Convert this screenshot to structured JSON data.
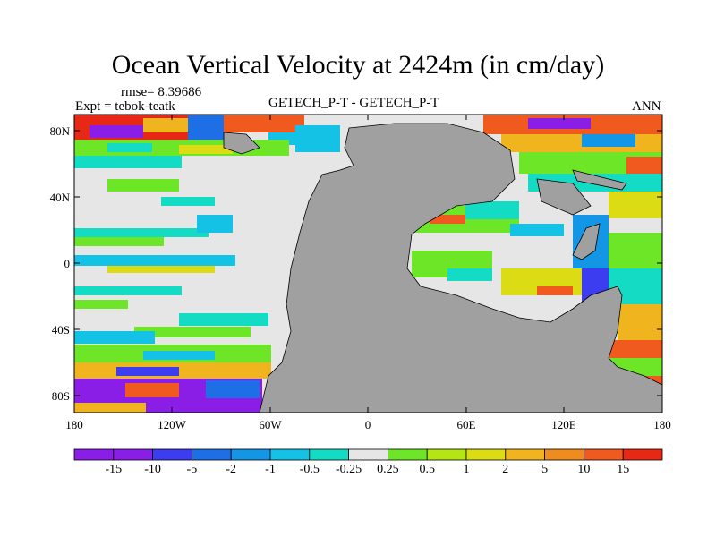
{
  "title": "Ocean Vertical Velocity at 2424m (in cm/day)",
  "stats": "rmse= 8.39686",
  "experiment": "Expt = tebok-teatk",
  "subtitle": "GETECH_P-T - GETECH_P-T",
  "season": "ANN",
  "lat_labels": [
    "80N",
    "40N",
    "0",
    "40S",
    "80S"
  ],
  "lon_labels": [
    "180",
    "120W",
    "60W",
    "0",
    "60E",
    "120E",
    "180"
  ],
  "colorbar": {
    "labels": [
      "-15",
      "-10",
      "-5",
      "-2",
      "-1",
      "-0.5",
      "-0.25",
      "0.25",
      "0.5",
      "1",
      "2",
      "5",
      "10",
      "15"
    ],
    "colors": [
      "#8a1ee6",
      "#3c3cf0",
      "#1e6ee6",
      "#1496e6",
      "#14c2e6",
      "#14dcc4",
      "#e6e6e6",
      "#6ee628",
      "#b4e614",
      "#dcdc14",
      "#f0b41e",
      "#f08c1e",
      "#f05a1e",
      "#e62814"
    ]
  },
  "land_color": "#a0a0a0"
}
